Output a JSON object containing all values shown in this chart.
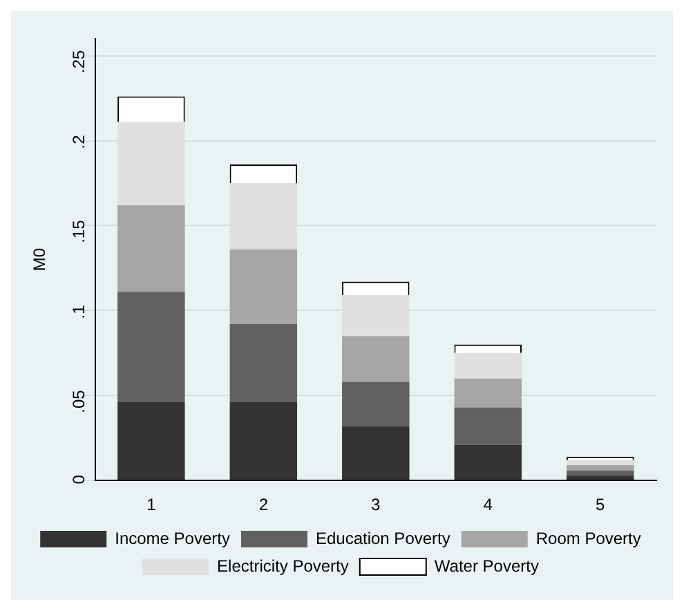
{
  "chart_data": {
    "type": "bar",
    "stacked": true,
    "ylabel": "M0",
    "categories": [
      "1",
      "2",
      "3",
      "4",
      "5"
    ],
    "series": [
      {
        "name": "Income Poverty",
        "color": "#333333",
        "values": [
          0.046,
          0.046,
          0.032,
          0.021,
          0.003
        ]
      },
      {
        "name": "Education Poverty",
        "color": "#616161",
        "values": [
          0.065,
          0.046,
          0.026,
          0.022,
          0.003
        ]
      },
      {
        "name": "Room Poverty",
        "color": "#a6a6a6",
        "values": [
          0.051,
          0.044,
          0.027,
          0.017,
          0.003
        ]
      },
      {
        "name": "Electricity Poverty",
        "color": "#e0e0e0",
        "values": [
          0.049,
          0.039,
          0.024,
          0.015,
          0.003
        ]
      },
      {
        "name": "Water Poverty",
        "color": "#ffffff",
        "values": [
          0.015,
          0.011,
          0.008,
          0.005,
          0.002
        ]
      }
    ],
    "ylim": [
      0,
      0.26
    ],
    "yticks": [
      {
        "value": 0,
        "label": "0"
      },
      {
        "value": 0.05,
        "label": ".05"
      },
      {
        "value": 0.1,
        "label": ".1"
      },
      {
        "value": 0.15,
        "label": ".15"
      },
      {
        "value": 0.2,
        "label": ".2"
      },
      {
        "value": 0.25,
        "label": ".25"
      }
    ],
    "grid": "y",
    "legend": "bottom"
  }
}
